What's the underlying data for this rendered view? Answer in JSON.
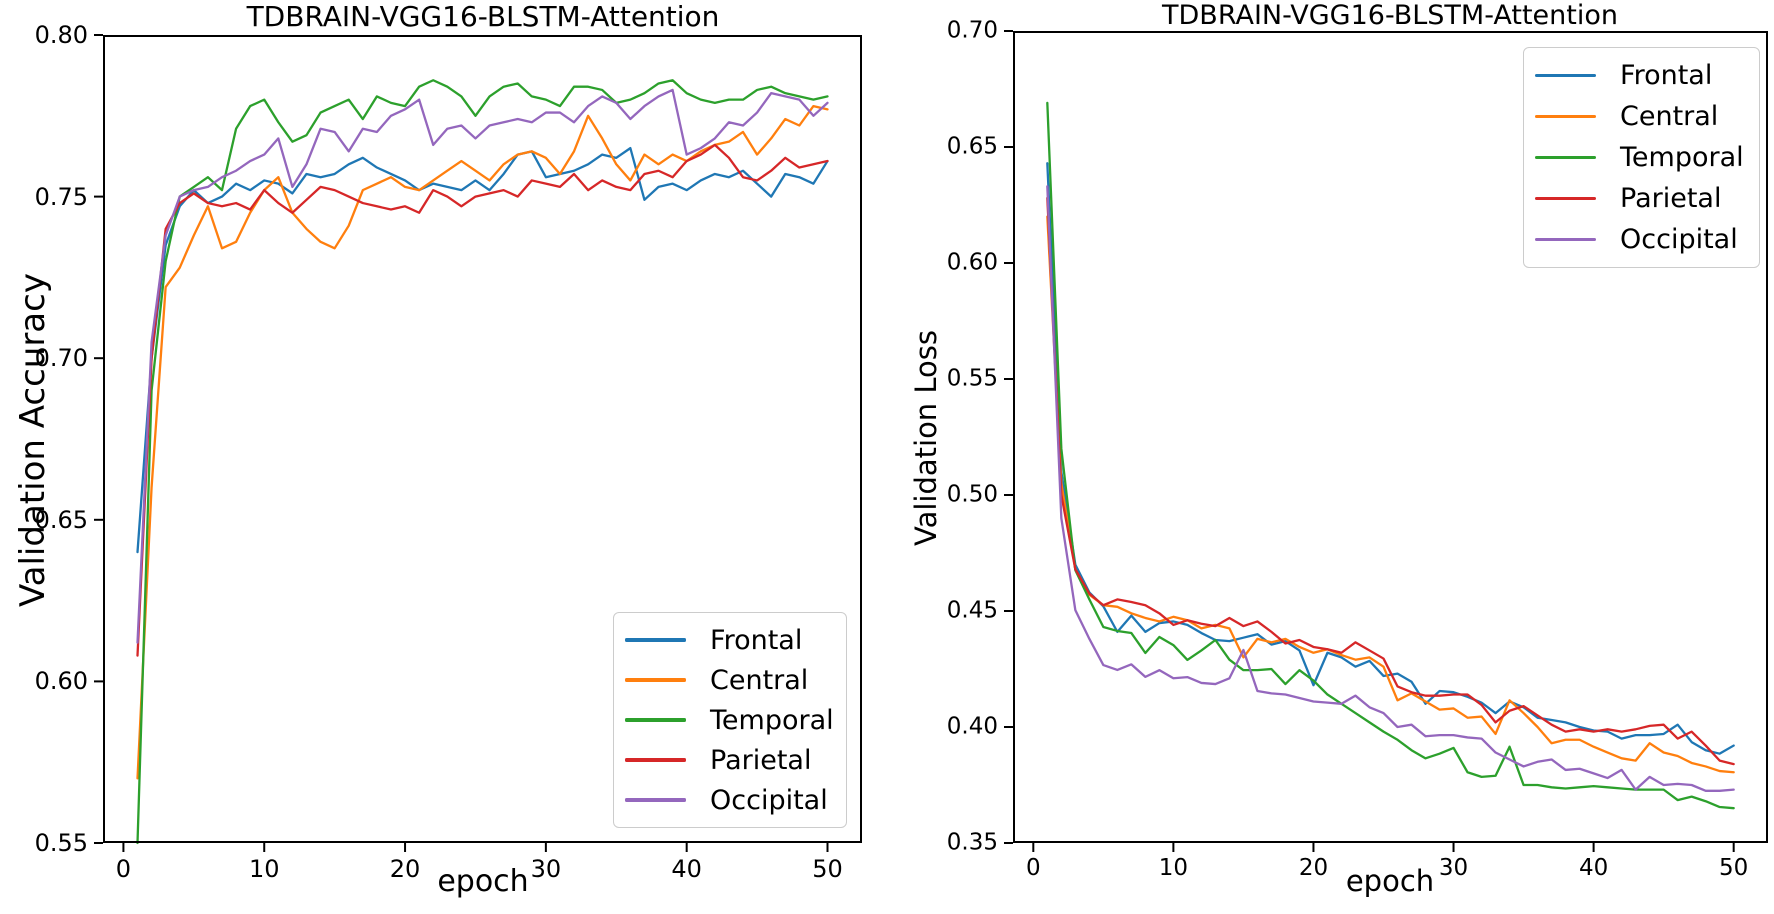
{
  "figure": {
    "background": "#ffffff",
    "text_color": "#000000",
    "axis_color": "#000000",
    "series_colors": {
      "Frontal": "#1f77b4",
      "Central": "#ff7f0e",
      "Temporal": "#2ca02c",
      "Parietal": "#d62728",
      "Occipital": "#9467bd"
    }
  },
  "chart_data": [
    {
      "type": "line",
      "title": "TDBRAIN-VGG16-BLSTM-Attention",
      "xlabel": "epoch",
      "ylabel": "Validation Accuracy",
      "x_range": [
        1,
        50
      ],
      "xlim": [
        -1.45,
        52.45
      ],
      "ylim": [
        0.55,
        0.8
      ],
      "xticks": [
        0,
        10,
        20,
        30,
        40,
        50
      ],
      "xtick_labels": [
        "0",
        "10",
        "20",
        "30",
        "40",
        "50"
      ],
      "yticks": [
        0.55,
        0.6,
        0.65,
        0.7,
        0.75,
        0.8
      ],
      "ytick_labels": [
        "0.55",
        "0.60",
        "0.65",
        "0.70",
        "0.75",
        "0.80"
      ],
      "grid": false,
      "legend_position": "lower right",
      "series": [
        {
          "name": "Frontal",
          "color": "#1f77b4",
          "values": [
            0.64,
            0.7,
            0.735,
            0.747,
            0.752,
            0.748,
            0.75,
            0.754,
            0.752,
            0.755,
            0.754,
            0.751,
            0.757,
            0.756,
            0.757,
            0.76,
            0.762,
            0.759,
            0.757,
            0.755,
            0.752,
            0.754,
            0.753,
            0.752,
            0.755,
            0.752,
            0.757,
            0.763,
            0.764,
            0.756,
            0.757,
            0.758,
            0.76,
            0.763,
            0.762,
            0.765,
            0.749,
            0.753,
            0.754,
            0.752,
            0.755,
            0.757,
            0.756,
            0.758,
            0.754,
            0.75,
            0.757,
            0.756,
            0.754,
            0.761
          ]
        },
        {
          "name": "Central",
          "color": "#ff7f0e",
          "values": [
            0.57,
            0.66,
            0.722,
            0.728,
            0.738,
            0.747,
            0.734,
            0.736,
            0.745,
            0.752,
            0.756,
            0.745,
            0.74,
            0.736,
            0.734,
            0.741,
            0.752,
            0.754,
            0.756,
            0.753,
            0.752,
            0.755,
            0.758,
            0.761,
            0.758,
            0.755,
            0.76,
            0.763,
            0.764,
            0.762,
            0.757,
            0.764,
            0.775,
            0.768,
            0.76,
            0.755,
            0.763,
            0.76,
            0.763,
            0.761,
            0.764,
            0.766,
            0.767,
            0.77,
            0.763,
            0.768,
            0.774,
            0.772,
            0.778,
            0.777
          ]
        },
        {
          "name": "Temporal",
          "color": "#2ca02c",
          "values": [
            0.55,
            0.69,
            0.73,
            0.75,
            0.753,
            0.756,
            0.752,
            0.771,
            0.778,
            0.78,
            0.773,
            0.767,
            0.769,
            0.776,
            0.778,
            0.78,
            0.774,
            0.781,
            0.779,
            0.778,
            0.784,
            0.786,
            0.784,
            0.781,
            0.775,
            0.781,
            0.784,
            0.785,
            0.781,
            0.78,
            0.778,
            0.784,
            0.784,
            0.783,
            0.779,
            0.78,
            0.782,
            0.785,
            0.786,
            0.782,
            0.78,
            0.779,
            0.78,
            0.78,
            0.783,
            0.784,
            0.782,
            0.781,
            0.78,
            0.781
          ]
        },
        {
          "name": "Parietal",
          "color": "#d62728",
          "values": [
            0.608,
            0.7,
            0.74,
            0.748,
            0.751,
            0.748,
            0.747,
            0.748,
            0.746,
            0.752,
            0.748,
            0.745,
            0.749,
            0.753,
            0.752,
            0.75,
            0.748,
            0.747,
            0.746,
            0.747,
            0.745,
            0.752,
            0.75,
            0.747,
            0.75,
            0.751,
            0.752,
            0.75,
            0.755,
            0.754,
            0.753,
            0.757,
            0.752,
            0.755,
            0.753,
            0.752,
            0.757,
            0.758,
            0.756,
            0.761,
            0.763,
            0.766,
            0.762,
            0.756,
            0.755,
            0.758,
            0.762,
            0.759,
            0.76,
            0.761
          ]
        },
        {
          "name": "Occipital",
          "color": "#9467bd",
          "values": [
            0.612,
            0.705,
            0.738,
            0.75,
            0.752,
            0.753,
            0.756,
            0.758,
            0.761,
            0.763,
            0.768,
            0.753,
            0.76,
            0.771,
            0.77,
            0.764,
            0.771,
            0.77,
            0.775,
            0.777,
            0.78,
            0.766,
            0.771,
            0.772,
            0.768,
            0.772,
            0.773,
            0.774,
            0.773,
            0.776,
            0.776,
            0.773,
            0.778,
            0.781,
            0.779,
            0.774,
            0.778,
            0.781,
            0.783,
            0.763,
            0.765,
            0.768,
            0.773,
            0.772,
            0.776,
            0.782,
            0.781,
            0.78,
            0.775,
            0.779
          ]
        }
      ]
    },
    {
      "type": "line",
      "title": "TDBRAIN-VGG16-BLSTM-Attention",
      "xlabel": "epoch",
      "ylabel": "Validation Loss",
      "x_range": [
        1,
        50
      ],
      "xlim": [
        -1.45,
        52.45
      ],
      "ylim": [
        0.35,
        0.7
      ],
      "xticks": [
        0,
        10,
        20,
        30,
        40,
        50
      ],
      "xtick_labels": [
        "0",
        "10",
        "20",
        "30",
        "40",
        "50"
      ],
      "yticks": [
        0.35,
        0.4,
        0.45,
        0.5,
        0.55,
        0.6,
        0.65,
        0.7
      ],
      "ytick_labels": [
        "0.35",
        "0.40",
        "0.45",
        "0.50",
        "0.55",
        "0.60",
        "0.65",
        "0.70"
      ],
      "grid": false,
      "legend_position": "upper right",
      "series": [
        {
          "name": "Frontal",
          "color": "#1f77b4",
          "values": [
            0.643,
            0.51,
            0.47,
            0.458,
            0.452,
            0.441,
            0.448,
            0.441,
            0.4448,
            0.4455,
            0.444,
            0.4405,
            0.4375,
            0.437,
            0.4385,
            0.44,
            0.4355,
            0.437,
            0.433,
            0.418,
            0.432,
            0.43,
            0.426,
            0.4285,
            0.422,
            0.423,
            0.4195,
            0.41,
            0.4155,
            0.415,
            0.413,
            0.4105,
            0.406,
            0.411,
            0.4085,
            0.404,
            0.403,
            0.402,
            0.4,
            0.3985,
            0.398,
            0.395,
            0.3965,
            0.3965,
            0.397,
            0.401,
            0.3935,
            0.39,
            0.3885,
            0.392
          ]
        },
        {
          "name": "Central",
          "color": "#ff7f0e",
          "values": [
            0.62,
            0.505,
            0.468,
            0.457,
            0.4525,
            0.4518,
            0.449,
            0.447,
            0.4455,
            0.4475,
            0.446,
            0.4425,
            0.444,
            0.4425,
            0.43,
            0.438,
            0.4365,
            0.438,
            0.4345,
            0.432,
            0.4335,
            0.431,
            0.429,
            0.43,
            0.426,
            0.4115,
            0.4145,
            0.411,
            0.4075,
            0.408,
            0.404,
            0.4045,
            0.397,
            0.4115,
            0.406,
            0.4,
            0.393,
            0.3945,
            0.3945,
            0.3915,
            0.389,
            0.3865,
            0.3855,
            0.393,
            0.389,
            0.3875,
            0.3845,
            0.383,
            0.381,
            0.3805
          ]
        },
        {
          "name": "Temporal",
          "color": "#2ca02c",
          "values": [
            0.669,
            0.52,
            0.4676,
            0.455,
            0.4431,
            0.4414,
            0.4405,
            0.4319,
            0.4388,
            0.4353,
            0.4289,
            0.433,
            0.4375,
            0.429,
            0.4245,
            0.4245,
            0.425,
            0.4185,
            0.4245,
            0.42,
            0.414,
            0.41,
            0.406,
            0.402,
            0.398,
            0.3945,
            0.39,
            0.3865,
            0.3885,
            0.391,
            0.3805,
            0.3785,
            0.379,
            0.3915,
            0.375,
            0.375,
            0.374,
            0.3735,
            0.374,
            0.3745,
            0.374,
            0.3735,
            0.373,
            0.373,
            0.373,
            0.3685,
            0.37,
            0.368,
            0.3655,
            0.365
          ]
        },
        {
          "name": "Parietal",
          "color": "#d62728",
          "values": [
            0.628,
            0.5,
            0.468,
            0.4575,
            0.4525,
            0.455,
            0.4539,
            0.4525,
            0.449,
            0.444,
            0.446,
            0.4445,
            0.4435,
            0.447,
            0.4435,
            0.4455,
            0.441,
            0.436,
            0.4375,
            0.4345,
            0.4335,
            0.432,
            0.4365,
            0.433,
            0.4295,
            0.4175,
            0.415,
            0.4135,
            0.4135,
            0.414,
            0.414,
            0.4095,
            0.402,
            0.407,
            0.409,
            0.405,
            0.401,
            0.398,
            0.399,
            0.398,
            0.399,
            0.398,
            0.399,
            0.4005,
            0.401,
            0.395,
            0.398,
            0.392,
            0.3855,
            0.384
          ]
        },
        {
          "name": "Occipital",
          "color": "#9467bd",
          "values": [
            0.633,
            0.49,
            0.4504,
            0.438,
            0.4267,
            0.4246,
            0.427,
            0.4216,
            0.4245,
            0.421,
            0.4215,
            0.419,
            0.4185,
            0.421,
            0.4332,
            0.4155,
            0.4145,
            0.414,
            0.4125,
            0.411,
            0.4105,
            0.41,
            0.4135,
            0.4085,
            0.406,
            0.4,
            0.401,
            0.396,
            0.3965,
            0.3965,
            0.3955,
            0.395,
            0.389,
            0.386,
            0.383,
            0.385,
            0.386,
            0.3815,
            0.382,
            0.38,
            0.378,
            0.3815,
            0.373,
            0.3785,
            0.375,
            0.3755,
            0.375,
            0.3725,
            0.3725,
            0.373
          ]
        }
      ]
    }
  ]
}
